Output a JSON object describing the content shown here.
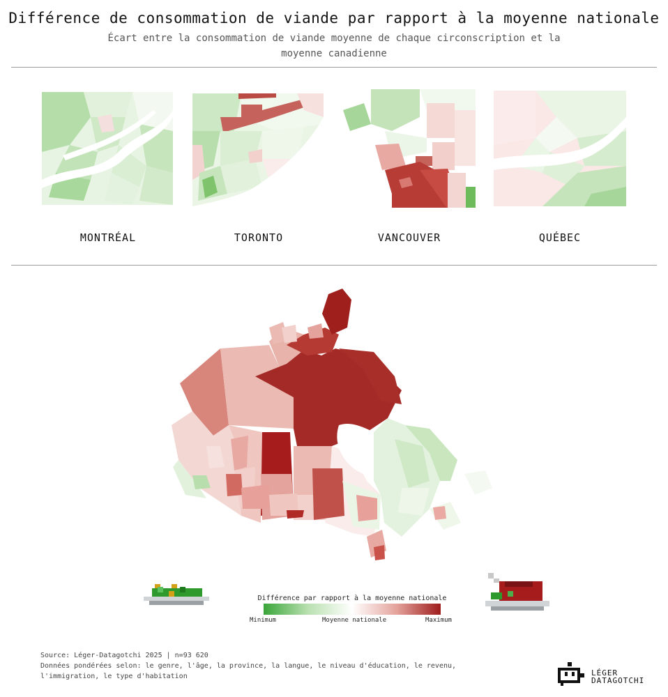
{
  "title": "Différence de consommation de viande par rapport à la moyenne nationale",
  "subtitle": "Écart entre la consommation de viande moyenne de chaque circonscription et la moyenne canadienne",
  "cities": [
    {
      "name": "MONTRÉAL"
    },
    {
      "name": "TORONTO"
    },
    {
      "name": "VANCOUVER"
    },
    {
      "name": "QUÉBEC"
    }
  ],
  "legend": {
    "title": "Différence par rapport à la moyenne nationale",
    "min_label": "Minimum",
    "mid_label": "Moyenne nationale",
    "max_label": "Maximum",
    "colors": [
      "#3aa53a",
      "#b9e0b0",
      "#ffffff",
      "#e4a39c",
      "#9e1c1c"
    ]
  },
  "footer": {
    "source": "Source: Léger-Datagotchi 2025 | n=93 620",
    "weighting": "Données pondérées selon: le genre, l'âge, la province, la langue, le niveau d'éducation, le revenu, l'immigration, le type d'habitation"
  },
  "logo": {
    "line1": "LÉGER",
    "line2": "DATAGOTCHI"
  }
}
